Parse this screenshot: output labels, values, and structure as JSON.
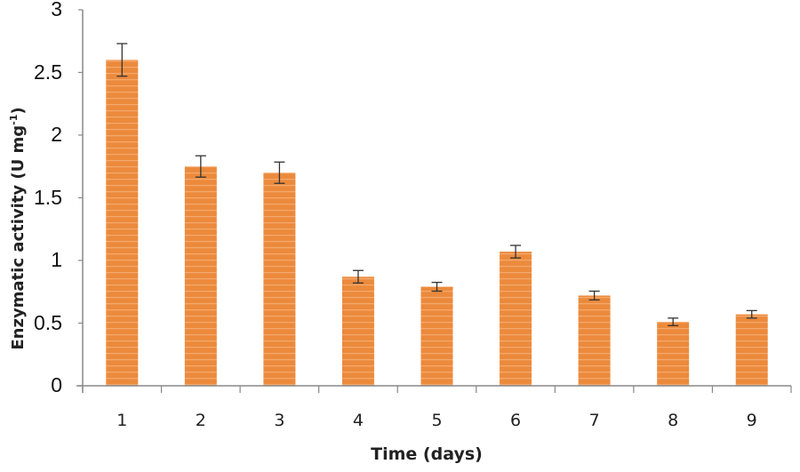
{
  "chart_data": {
    "type": "bar",
    "title": "",
    "xlabel": "Time (days)",
    "ylabel": "Enzymatic activity (U mg-1)",
    "ylabel_parts": {
      "main": "Enzymatic activity (U mg",
      "sup": "-1",
      "end": ")"
    },
    "categories": [
      "1",
      "2",
      "3",
      "4",
      "5",
      "6",
      "7",
      "8",
      "9"
    ],
    "values": [
      2.6,
      1.75,
      1.7,
      0.87,
      0.79,
      1.07,
      0.72,
      0.51,
      0.57
    ],
    "errors": [
      0.13,
      0.085,
      0.085,
      0.05,
      0.035,
      0.05,
      0.035,
      0.03,
      0.03
    ],
    "ylim": [
      0,
      3
    ],
    "yticks": [
      "0",
      "0.5",
      "1",
      "1.5",
      "2",
      "2.5",
      "3"
    ],
    "grid": false,
    "legend": null,
    "bar_color": "#ec8a3c"
  }
}
